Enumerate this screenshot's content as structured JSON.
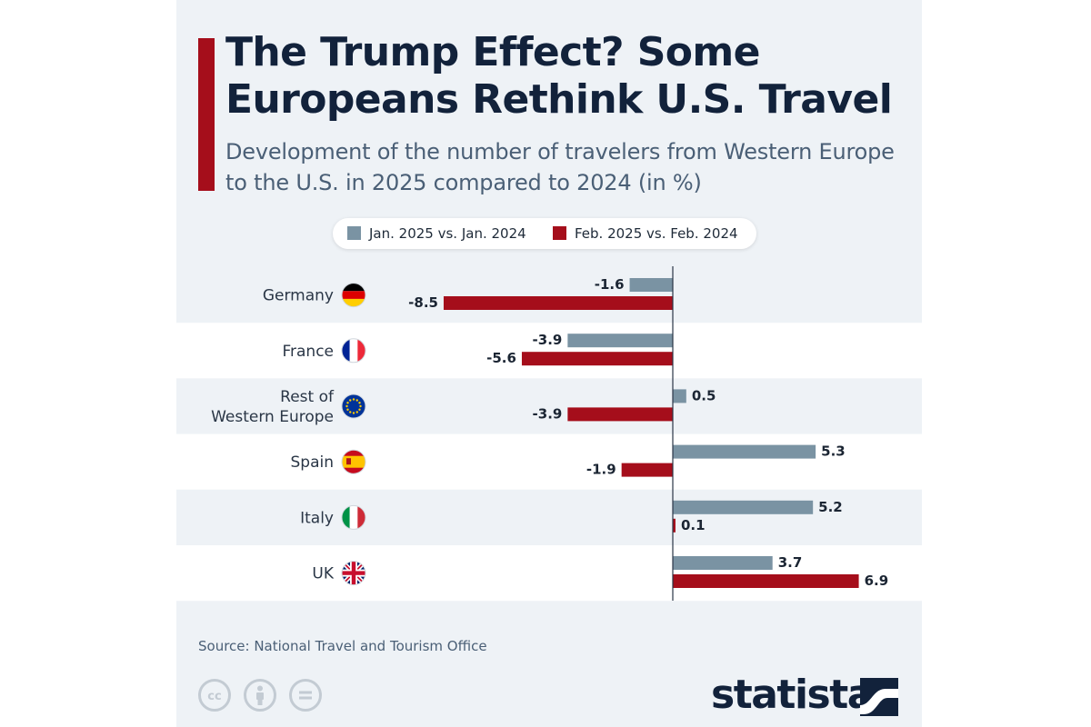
{
  "title": "The Trump Effect? Some Europeans Rethink U.S. Travel",
  "subtitle": "Development of the number of travelers from Western Europe to the U.S. in 2025 compared to 2024 (in %)",
  "source": "Source: National Travel and Tourism Office",
  "brand": "statista",
  "license_icons": [
    "cc-icon",
    "attribution-icon",
    "no-derivatives-icon"
  ],
  "colors": {
    "accent": "#a50e1b",
    "jan_series": "#7a93a3",
    "feb_series": "#a50e1b",
    "title": "#12223b",
    "panel": "#eef2f6",
    "band": "#ffffff"
  },
  "chart_data": {
    "type": "bar",
    "orientation": "horizontal",
    "title": "The Trump Effect? Some Europeans Rethink U.S. Travel",
    "subtitle": "Development of the number of travelers from Western Europe to the U.S. in 2025 compared to 2024 (in %)",
    "categories": [
      "Germany",
      "France",
      "Rest of Western Europe",
      "Spain",
      "Italy",
      "UK"
    ],
    "category_lines": [
      [
        "Germany"
      ],
      [
        "France"
      ],
      [
        "Rest of",
        "Western Europe"
      ],
      [
        "Spain"
      ],
      [
        "Italy"
      ],
      [
        "UK"
      ]
    ],
    "flag_icons": [
      "germany-flag-icon",
      "france-flag-icon",
      "eu-flag-icon",
      "spain-flag-icon",
      "italy-flag-icon",
      "uk-flag-icon"
    ],
    "series": [
      {
        "name": "Jan. 2025 vs. Jan. 2024",
        "color": "#7a93a3",
        "values": [
          -1.6,
          -3.9,
          0.5,
          5.3,
          5.2,
          3.7
        ]
      },
      {
        "name": "Feb. 2025 vs. Feb. 2024",
        "color": "#a50e1b",
        "values": [
          -8.5,
          -5.6,
          -3.9,
          -1.9,
          0.1,
          6.9
        ]
      }
    ],
    "xlim": [
      -8.5,
      6.9
    ],
    "grid": false,
    "legend": "top-center",
    "data_labels": true
  }
}
